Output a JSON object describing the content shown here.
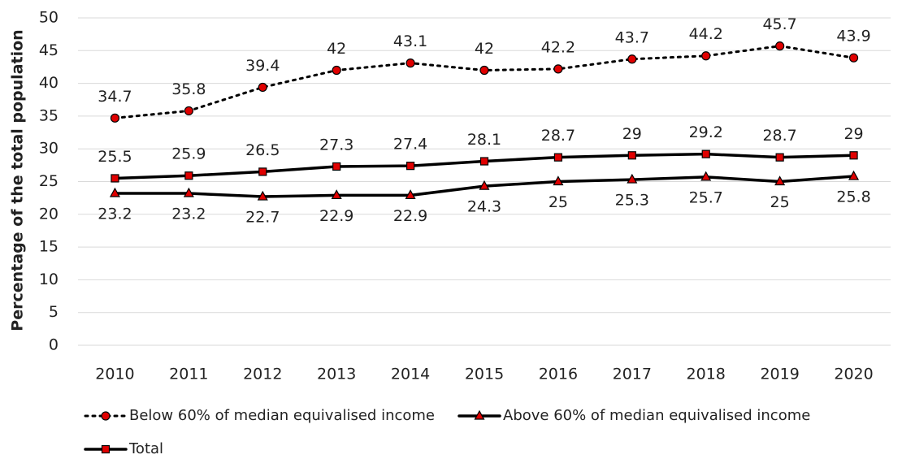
{
  "chart_data": {
    "type": "line",
    "y_label": "Percentage of the total population",
    "categories": [
      "2010",
      "2011",
      "2012",
      "2013",
      "2014",
      "2015",
      "2016",
      "2017",
      "2018",
      "2019",
      "2020"
    ],
    "series": [
      {
        "name": "Below 60% of median equivalised income",
        "color": "#000000",
        "marker_color": "#e00000",
        "marker": "circle",
        "line_style": "dotted",
        "values": [
          34.7,
          35.8,
          39.4,
          42,
          43.1,
          42,
          42.2,
          43.7,
          44.2,
          45.7,
          43.9
        ]
      },
      {
        "name": "Above 60% of median equivalised income",
        "color": "#000000",
        "marker_color": "#e00000",
        "marker": "triangle",
        "line_style": "solid",
        "values": [
          23.2,
          23.2,
          22.7,
          22.9,
          22.9,
          24.3,
          25,
          25.3,
          25.7,
          25,
          25.8
        ]
      },
      {
        "name": "Total",
        "color": "#000000",
        "marker_color": "#e00000",
        "marker": "square",
        "line_style": "solid",
        "values": [
          25.5,
          25.9,
          26.5,
          27.3,
          27.4,
          28.1,
          28.7,
          29,
          29.2,
          28.7,
          29
        ]
      }
    ],
    "ylim": [
      0,
      50
    ],
    "yticks": [
      0,
      5,
      10,
      15,
      20,
      25,
      30,
      35,
      40,
      45,
      50
    ],
    "grid": true,
    "legend": "bottom"
  }
}
